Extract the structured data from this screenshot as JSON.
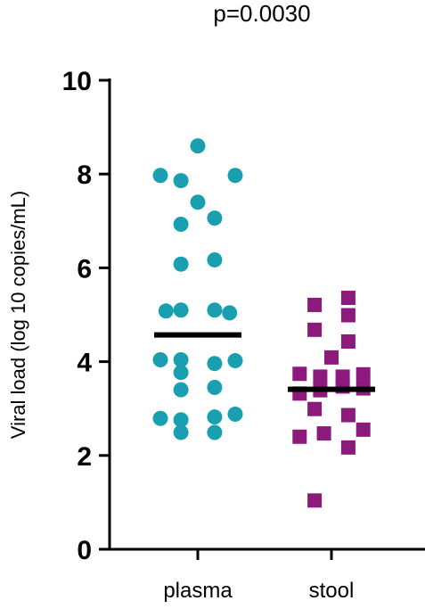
{
  "chart_data": {
    "type": "scatter",
    "annotation": "p=0.0030",
    "ylabel": "Viral load (log 10 copies/mL)",
    "xlabel": "",
    "ylim": [
      0,
      10
    ],
    "yticks": [
      "0",
      "2",
      "4",
      "6",
      "8",
      "10"
    ],
    "categories": [
      "plasma",
      "stool"
    ],
    "series": [
      {
        "name": "plasma",
        "marker": "circle",
        "color": "#1a9fb0",
        "median": 4.57,
        "points": [
          {
            "dx": 0,
            "y": 8.6
          },
          {
            "dx": -1,
            "y": 7.97
          },
          {
            "dx": 1,
            "y": 7.97
          },
          {
            "dx": -0.45,
            "y": 7.86
          },
          {
            "dx": 0,
            "y": 7.4
          },
          {
            "dx": -0.45,
            "y": 6.93
          },
          {
            "dx": 0.45,
            "y": 7.06
          },
          {
            "dx": -0.45,
            "y": 6.08
          },
          {
            "dx": 0.45,
            "y": 6.17
          },
          {
            "dx": -0.85,
            "y": 5.08
          },
          {
            "dx": -0.45,
            "y": 5.1
          },
          {
            "dx": 0.45,
            "y": 5.1
          },
          {
            "dx": 0.85,
            "y": 5.04
          },
          {
            "dx": -1,
            "y": 4.04
          },
          {
            "dx": -0.45,
            "y": 4.04
          },
          {
            "dx": 0.45,
            "y": 3.96
          },
          {
            "dx": 1,
            "y": 4.02
          },
          {
            "dx": -0.45,
            "y": 3.77
          },
          {
            "dx": -0.45,
            "y": 3.4
          },
          {
            "dx": 0.45,
            "y": 3.45
          },
          {
            "dx": -1,
            "y": 2.79
          },
          {
            "dx": -0.45,
            "y": 2.76
          },
          {
            "dx": 0.45,
            "y": 2.82
          },
          {
            "dx": 1,
            "y": 2.88
          },
          {
            "dx": -0.45,
            "y": 2.49
          },
          {
            "dx": 0.45,
            "y": 2.49
          }
        ]
      },
      {
        "name": "stool",
        "marker": "square",
        "color": "#8b1a7c",
        "median": 3.41,
        "points": [
          {
            "dx": 0.45,
            "y": 5.36
          },
          {
            "dx": -0.45,
            "y": 5.21
          },
          {
            "dx": 0.45,
            "y": 4.99
          },
          {
            "dx": -0.45,
            "y": 4.68
          },
          {
            "dx": 0.45,
            "y": 4.43
          },
          {
            "dx": 0,
            "y": 4.09
          },
          {
            "dx": -0.85,
            "y": 3.74
          },
          {
            "dx": -0.3,
            "y": 3.68
          },
          {
            "dx": 0.3,
            "y": 3.68
          },
          {
            "dx": 0.85,
            "y": 3.73
          },
          {
            "dx": -0.85,
            "y": 3.32
          },
          {
            "dx": -0.3,
            "y": 3.39
          },
          {
            "dx": 0.3,
            "y": 3.47
          },
          {
            "dx": 0.85,
            "y": 3.43
          },
          {
            "dx": -0.45,
            "y": 2.99
          },
          {
            "dx": 0.45,
            "y": 2.86
          },
          {
            "dx": -0.85,
            "y": 2.4
          },
          {
            "dx": -0.2,
            "y": 2.47
          },
          {
            "dx": 0.45,
            "y": 2.17
          },
          {
            "dx": 0.85,
            "y": 2.55
          },
          {
            "dx": -0.45,
            "y": 1.04
          }
        ]
      }
    ]
  }
}
